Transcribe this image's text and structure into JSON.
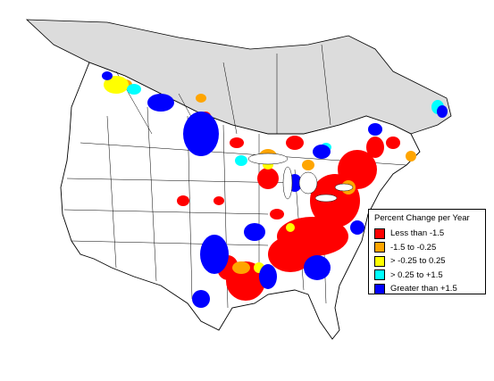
{
  "legend": {
    "title": "Percent Change per Year",
    "items": [
      {
        "label": "Less than -1.5",
        "color": "#ff0000"
      },
      {
        "label": "-1.5 to -0.25",
        "color": "#ffa500"
      },
      {
        "label": "> -0.25 to 0.25",
        "color": "#ffff00"
      },
      {
        "label": "> 0.25 to +1.5",
        "color": "#00ffff"
      },
      {
        "label": "Greater than +1.5",
        "color": "#0000ff"
      }
    ]
  },
  "colors": {
    "no_data_region": "#dcdcdc",
    "land": "#ffffff",
    "boundary": "#000000"
  }
}
